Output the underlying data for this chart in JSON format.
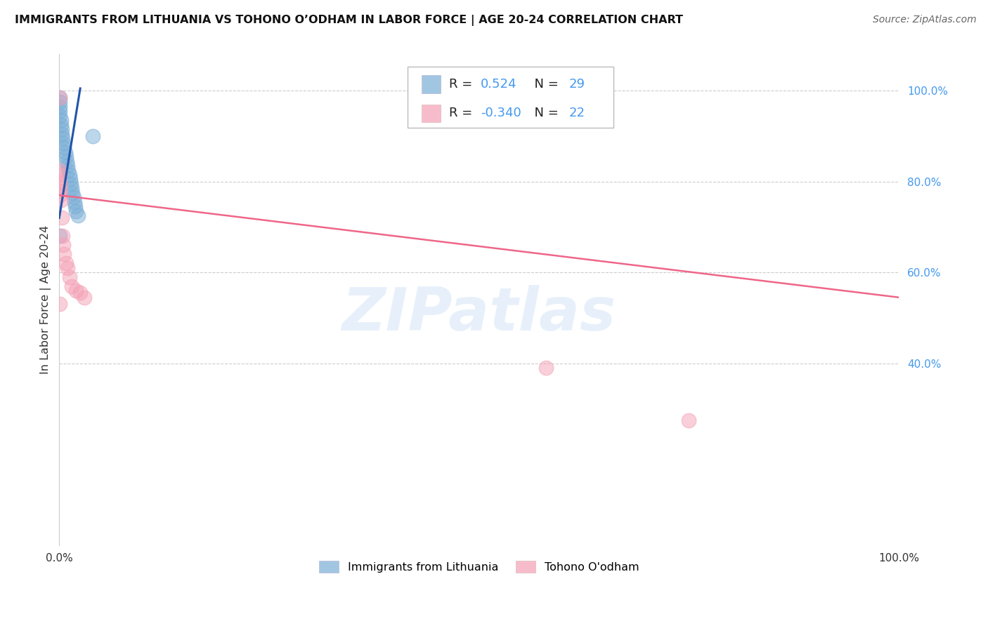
{
  "title": "IMMIGRANTS FROM LITHUANIA VS TOHONO O’ODHAM IN LABOR FORCE | AGE 20-24 CORRELATION CHART",
  "source": "Source: ZipAtlas.com",
  "ylabel": "In Labor Force | Age 20-24",
  "right_yticks": [
    0.4,
    0.6,
    0.8,
    1.0
  ],
  "right_ylabels": [
    "40.0%",
    "60.0%",
    "80.0%",
    "100.0%"
  ],
  "blue_R": "0.524",
  "blue_N": "29",
  "pink_R": "-0.340",
  "pink_N": "22",
  "blue_color": "#7AAED6",
  "pink_color": "#F4A0B5",
  "blue_line_color": "#2255AA",
  "pink_line_color": "#EE6688",
  "r_value_color": "#4499EE",
  "legend_blue_label": "Immigrants from Lithuania",
  "legend_pink_label": "Tohono O'odham",
  "watermark": "ZIPatlas",
  "xlim": [
    0.0,
    1.0
  ],
  "ylim": [
    0.0,
    1.08
  ],
  "blue_x": [
    0.001,
    0.001,
    0.001,
    0.001,
    0.001,
    0.002,
    0.002,
    0.003,
    0.003,
    0.004,
    0.005,
    0.006,
    0.007,
    0.008,
    0.009,
    0.01,
    0.011,
    0.012,
    0.013,
    0.014,
    0.015,
    0.016,
    0.017,
    0.018,
    0.019,
    0.02,
    0.022,
    0.001,
    0.04
  ],
  "blue_y": [
    0.985,
    0.975,
    0.965,
    0.955,
    0.945,
    0.935,
    0.925,
    0.915,
    0.905,
    0.895,
    0.885,
    0.875,
    0.865,
    0.855,
    0.845,
    0.835,
    0.825,
    0.815,
    0.805,
    0.795,
    0.785,
    0.775,
    0.765,
    0.755,
    0.745,
    0.735,
    0.725,
    0.68,
    0.9
  ],
  "pink_x": [
    0.001,
    0.001,
    0.001,
    0.001,
    0.001,
    0.001,
    0.001,
    0.002,
    0.003,
    0.004,
    0.005,
    0.006,
    0.008,
    0.01,
    0.012,
    0.015,
    0.02,
    0.025,
    0.03,
    0.001,
    0.58,
    0.75
  ],
  "pink_y": [
    0.985,
    0.825,
    0.815,
    0.8,
    0.79,
    0.78,
    0.77,
    0.76,
    0.72,
    0.68,
    0.66,
    0.64,
    0.62,
    0.61,
    0.59,
    0.57,
    0.56,
    0.555,
    0.545,
    0.53,
    0.39,
    0.275
  ],
  "pink_line_start_x": 0.0,
  "pink_line_start_y": 0.77,
  "pink_line_end_x": 1.0,
  "pink_line_end_y": 0.545,
  "blue_line_start_x": 0.0,
  "blue_line_start_y": 0.72,
  "blue_line_end_x": 0.025,
  "blue_line_end_y": 1.005
}
